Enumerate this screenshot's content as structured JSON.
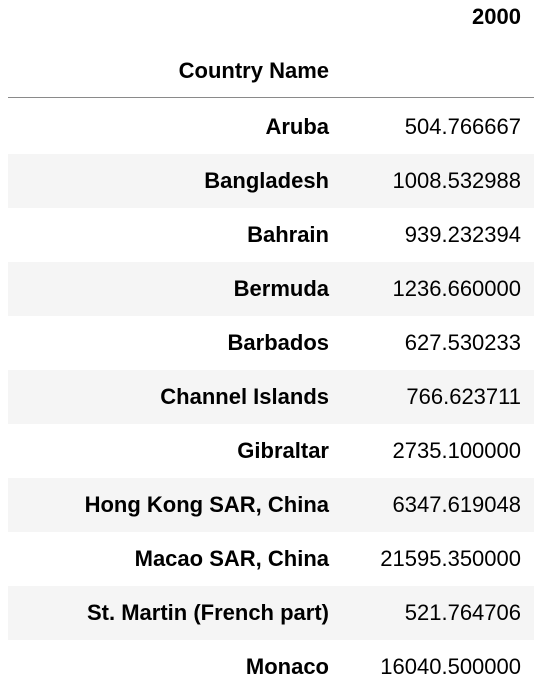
{
  "table": {
    "column_header": "2000",
    "index_name": "Country Name",
    "rows": [
      {
        "country": "Aruba",
        "value": "504.766667"
      },
      {
        "country": "Bangladesh",
        "value": "1008.532988"
      },
      {
        "country": "Bahrain",
        "value": "939.232394"
      },
      {
        "country": "Bermuda",
        "value": "1236.660000"
      },
      {
        "country": "Barbados",
        "value": "627.530233"
      },
      {
        "country": "Channel Islands",
        "value": "766.623711"
      },
      {
        "country": "Gibraltar",
        "value": "2735.100000"
      },
      {
        "country": "Hong Kong SAR, China",
        "value": "6347.619048"
      },
      {
        "country": "Macao SAR, China",
        "value": "21595.350000"
      },
      {
        "country": "St. Martin (French part)",
        "value": "521.764706"
      },
      {
        "country": "Monaco",
        "value": "16040.500000"
      }
    ]
  }
}
